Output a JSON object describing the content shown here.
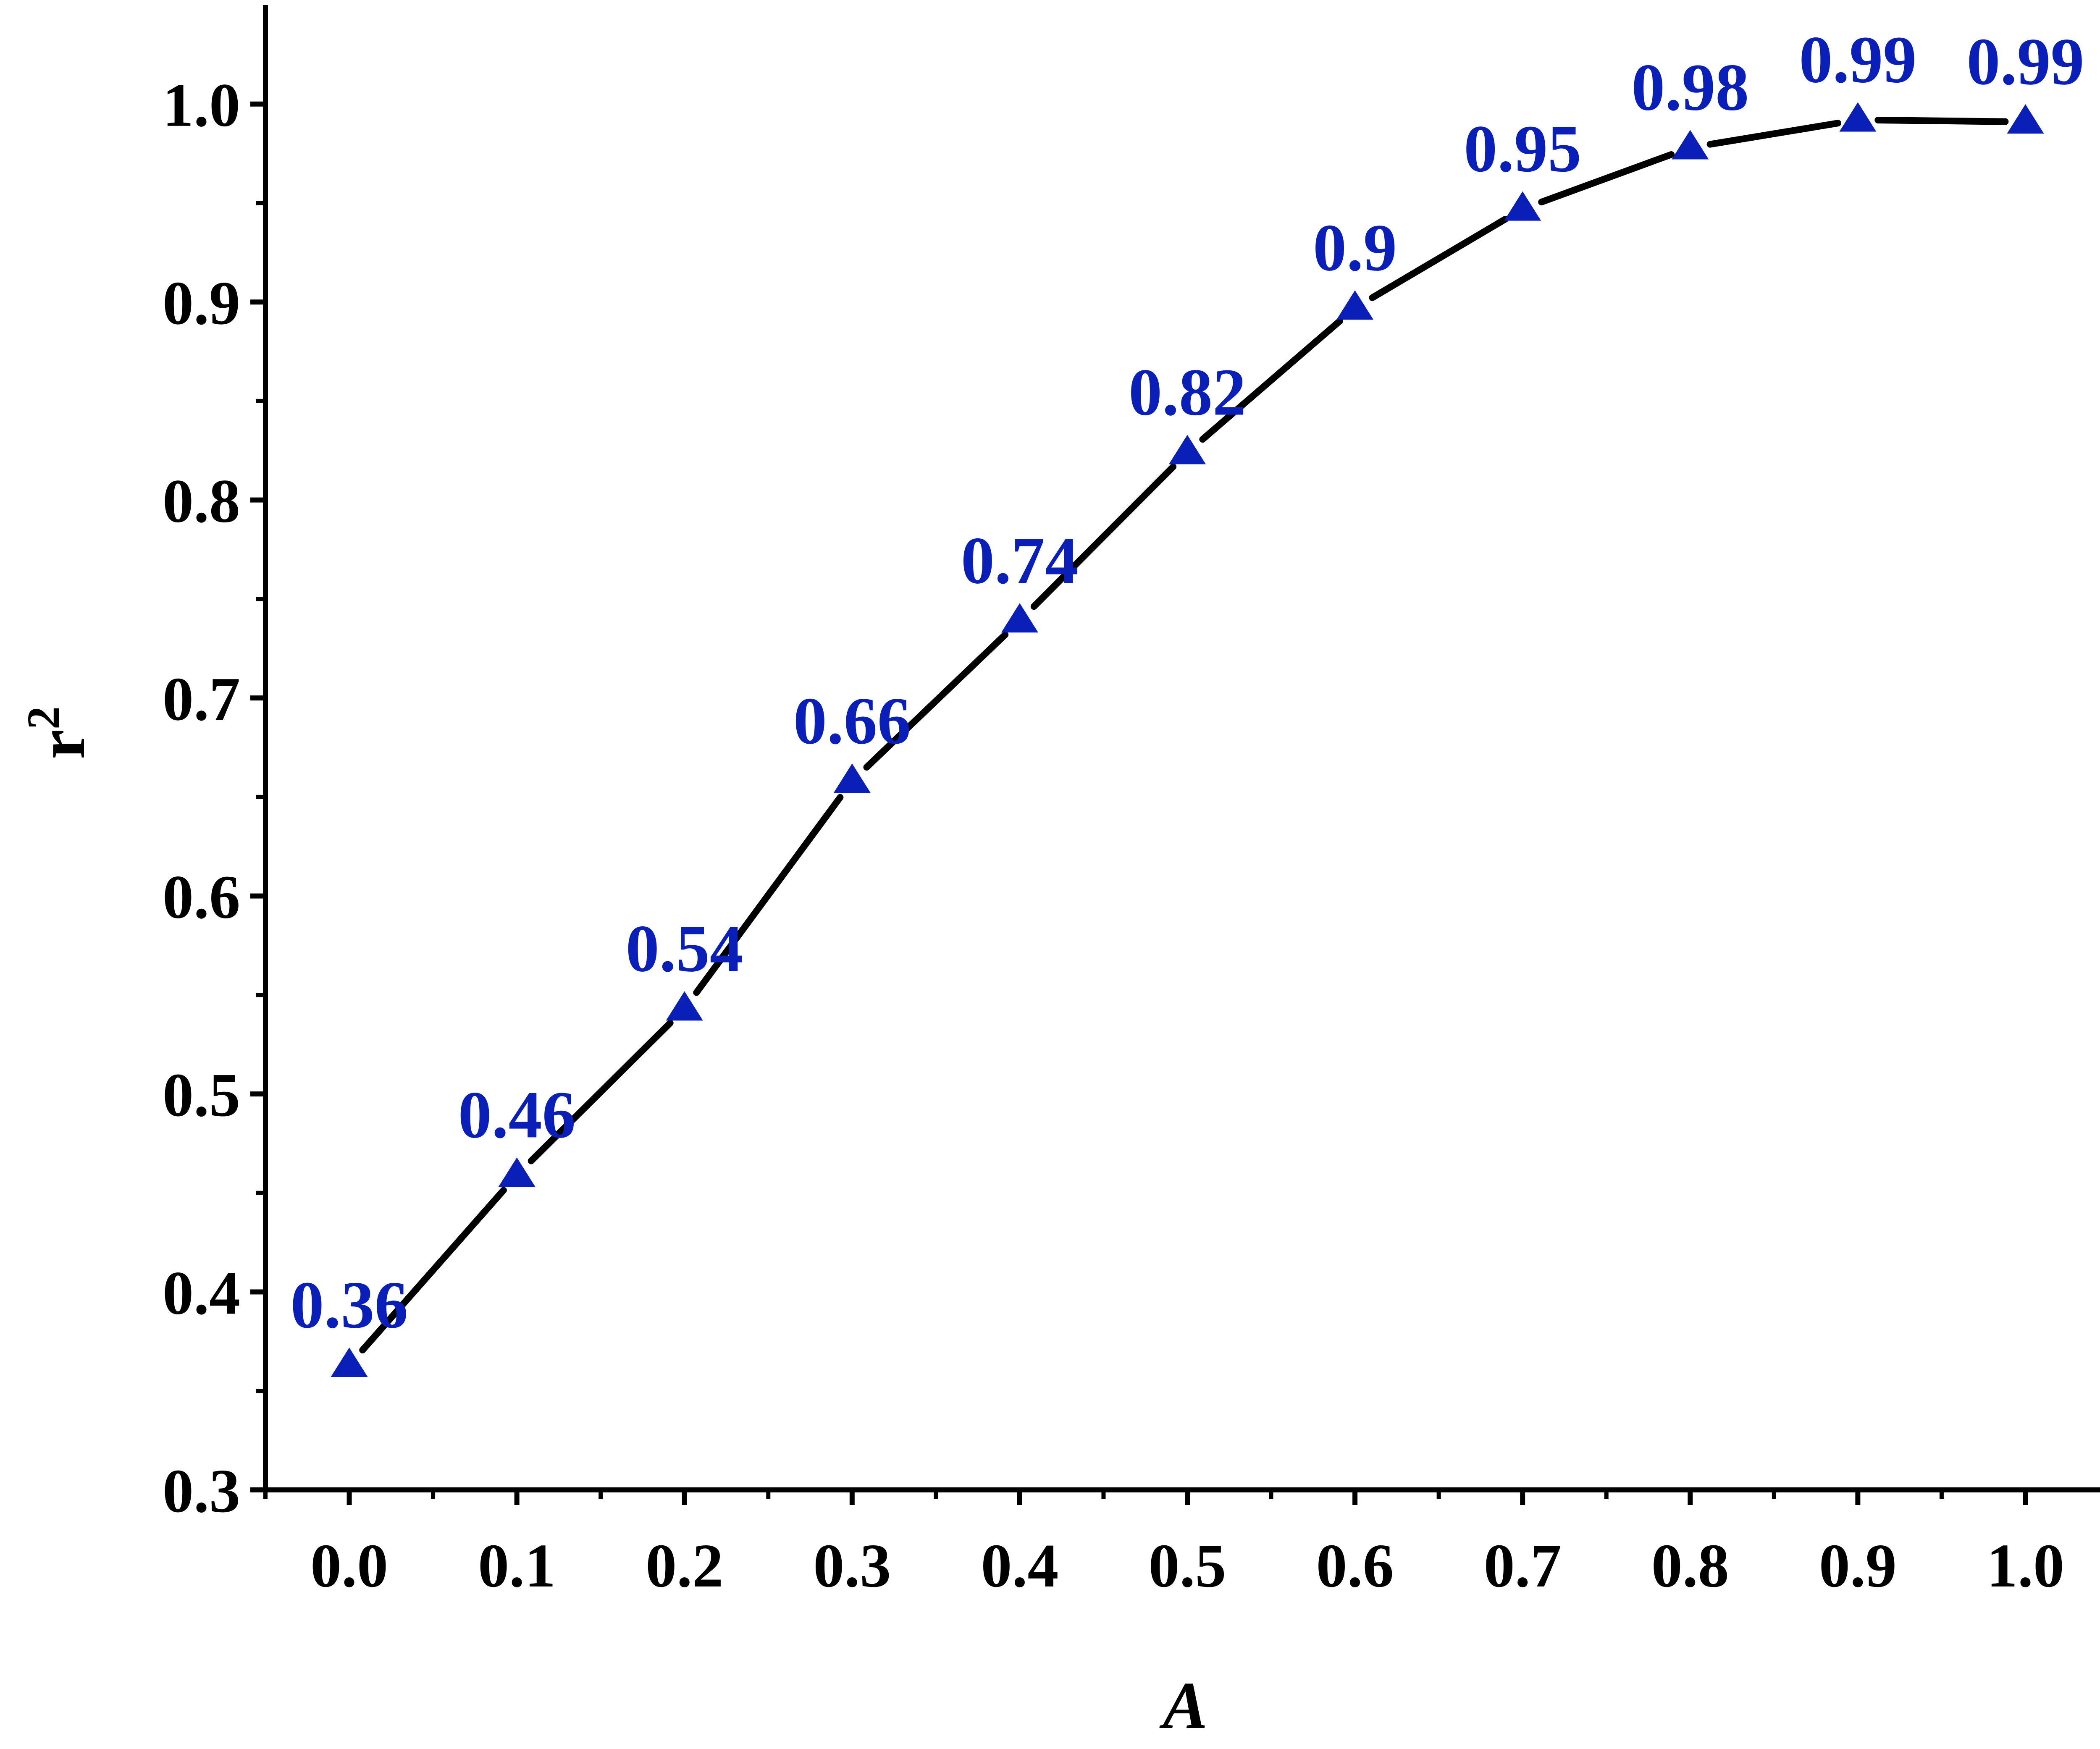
{
  "chart_data": {
    "type": "line",
    "title": "",
    "xlabel": "A",
    "ylabel": "r",
    "ylabel_superscript": "2",
    "x": [
      0.0,
      0.1,
      0.2,
      0.3,
      0.4,
      0.5,
      0.6,
      0.7,
      0.8,
      0.9,
      1.0
    ],
    "series": [
      {
        "values": [
          0.363,
          0.459,
          0.543,
          0.658,
          0.739,
          0.824,
          0.897,
          0.947,
          0.978,
          0.992,
          0.991
        ],
        "labels": [
          "0.36",
          "0.46",
          "0.54",
          "0.66",
          "0.74",
          "0.82",
          "0.9",
          "0.95",
          "0.98",
          "0.99",
          "0.99"
        ],
        "line_color": "#000000",
        "marker": "triangle",
        "marker_color": "#0a1fb8"
      }
    ],
    "xlim": [
      -0.05,
      1.05
    ],
    "ylim": [
      0.3,
      1.05
    ],
    "xticks": [
      0.0,
      0.1,
      0.2,
      0.3,
      0.4,
      0.5,
      0.6,
      0.7,
      0.8,
      0.9,
      1.0
    ],
    "xtick_labels": [
      "0.0",
      "0.1",
      "0.2",
      "0.3",
      "0.4",
      "0.5",
      "0.6",
      "0.7",
      "0.8",
      "0.9",
      "1.0"
    ],
    "yticks": [
      0.3,
      0.4,
      0.5,
      0.6,
      0.7,
      0.8,
      0.9,
      1.0
    ],
    "ytick_labels": [
      "0.3",
      "0.4",
      "0.5",
      "0.6",
      "0.7",
      "0.8",
      "0.9",
      "1.0"
    ],
    "grid": false,
    "label_color": "#0a1fb8"
  }
}
